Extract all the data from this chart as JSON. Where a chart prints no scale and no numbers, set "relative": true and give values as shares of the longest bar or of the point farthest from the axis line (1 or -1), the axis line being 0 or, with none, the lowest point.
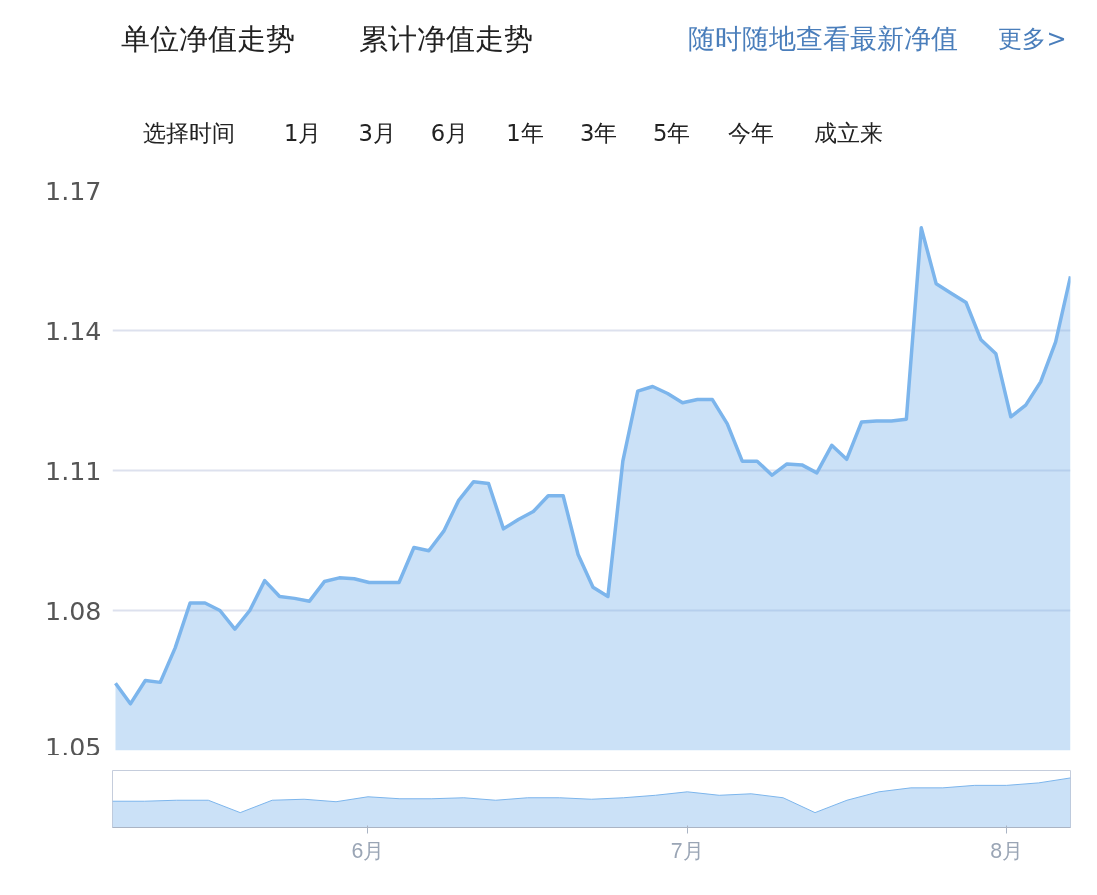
{
  "chart_data": [
    {
      "type": "other",
      "annotations": [
        "单位净值走势",
        "累计净值走势",
        "随时随地查看最新净值",
        "更多>",
        "选择时间",
        "1月",
        "3月",
        "6月",
        "1年",
        "3年",
        "5年",
        "今年",
        "成立来"
      ]
    },
    {
      "type": "area",
      "categories": [
        null,
        null,
        null,
        null,
        null,
        null,
        null,
        null,
        null,
        null,
        null,
        null,
        null,
        null,
        null,
        null,
        null,
        null,
        null,
        null,
        null,
        null,
        null,
        null,
        null,
        null,
        null,
        null,
        null,
        null,
        null,
        null,
        null,
        null,
        null,
        null,
        null,
        null,
        null,
        null,
        null,
        null,
        null,
        null,
        null,
        null,
        null,
        null,
        null,
        null,
        null,
        null,
        null,
        null,
        null,
        null,
        null,
        null,
        null,
        null,
        null,
        null,
        null,
        null,
        null
      ],
      "series": [
        {
          "color": "#7cb5ec",
          "values": [
            1.0644,
            1.06,
            1.065,
            1.0646,
            1.072,
            1.0816,
            1.0816,
            1.08,
            1.076,
            1.08,
            1.0864,
            1.083,
            1.0826,
            1.082,
            1.0862,
            1.087,
            1.0868,
            1.086,
            1.086,
            1.086,
            1.0935,
            1.0928,
            1.097,
            1.1036,
            1.1076,
            1.1072,
            1.0975,
            1.0995,
            1.1012,
            1.1046,
            1.1046,
            1.092,
            1.085,
            1.083,
            1.112,
            1.127,
            1.128,
            1.1265,
            1.1245,
            1.1252,
            1.1252,
            1.12,
            1.112,
            1.112,
            1.109,
            1.1114,
            1.1112,
            1.1095,
            1.1154,
            1.1124,
            1.1204,
            1.1206,
            1.1206,
            1.121,
            1.162,
            1.15,
            1.148,
            1.146,
            1.138,
            1.135,
            1.1215,
            1.124,
            1.129,
            1.1375,
            1.1516
          ]
        }
      ],
      "ylim": [
        1.05,
        1.17
      ],
      "yticks": [
        1.05,
        1.08,
        1.11,
        1.14,
        1.17
      ],
      "grid": "y",
      "tick_labels": "y"
    },
    {
      "type": "area",
      "relative": true,
      "tick_labels": "x",
      "categories": [
        null,
        null,
        null,
        null,
        null,
        null,
        null,
        null,
        "6月",
        null,
        null,
        null,
        null,
        null,
        null,
        null,
        null,
        null,
        "7月",
        null,
        null,
        null,
        null,
        null,
        null,
        null,
        null,
        null,
        "8月",
        null,
        null
      ],
      "series": [
        {
          "color": "#7cb5ec",
          "values": [
            0.53,
            0.53,
            0.55,
            0.55,
            0.3,
            0.55,
            0.57,
            0.52,
            0.62,
            0.58,
            0.58,
            0.6,
            0.55,
            0.6,
            0.6,
            0.57,
            0.6,
            0.65,
            0.72,
            0.65,
            0.68,
            0.6,
            0.3,
            0.55,
            0.72,
            0.8,
            0.8,
            0.85,
            0.85,
            0.9,
            1
          ]
        }
      ]
    }
  ]
}
